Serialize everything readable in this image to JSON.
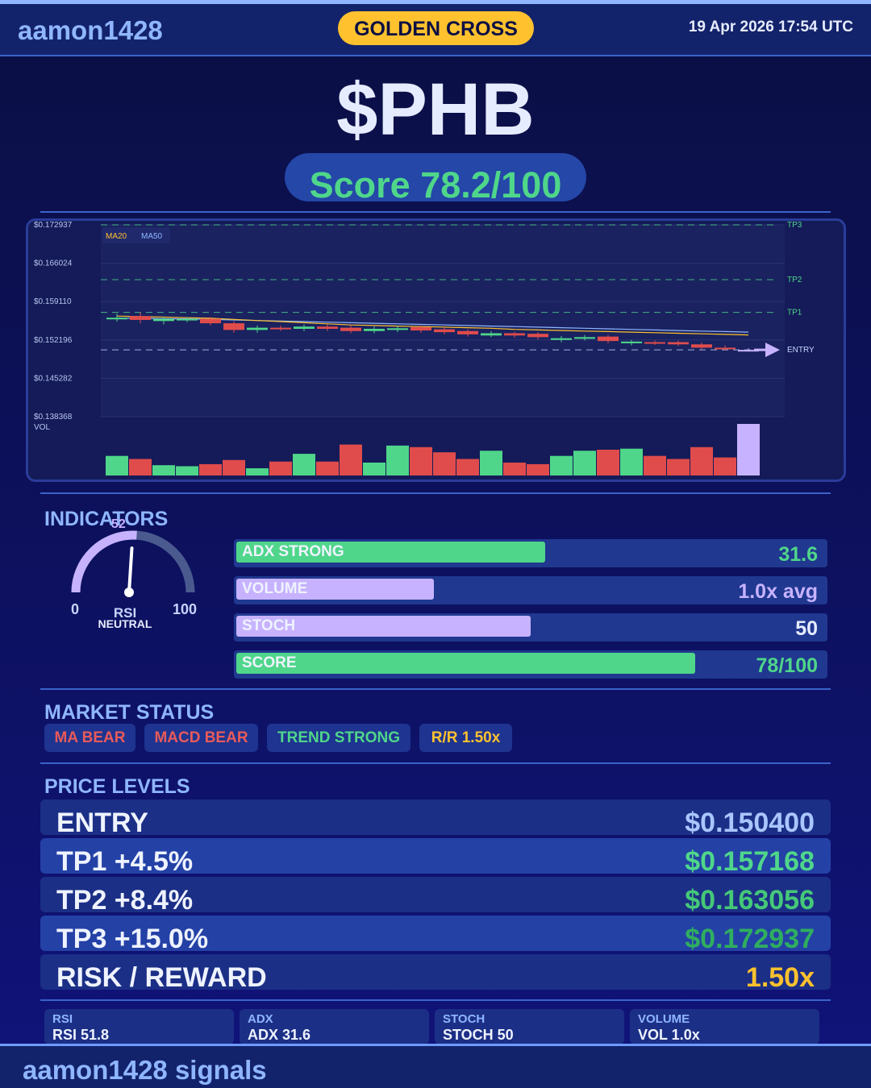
{
  "header": {
    "brand": "aamon1428",
    "signal": "GOLDEN CROSS",
    "datetime": "19 Apr 2026  17:54 UTC"
  },
  "ticker": "$PHB",
  "score": "Score 78.2/100",
  "colors": {
    "accent": "#8fb6ff",
    "green": "#4fd68a",
    "red": "#e04c4c",
    "purple": "#c7b2ff",
    "gold": "#ffc22e"
  },
  "chart_data": {
    "type": "candlestick",
    "y_axis_labels": [
      "$0.172937",
      "$0.166024",
      "$0.159110",
      "$0.152196",
      "$0.145282",
      "$0.138368"
    ],
    "ylim": [
      0.138368,
      0.172937
    ],
    "legend": [
      "MA20",
      "MA50"
    ],
    "levels": [
      {
        "name": "TP3",
        "value": 0.172937
      },
      {
        "name": "TP2",
        "value": 0.163056
      },
      {
        "name": "TP1",
        "value": 0.157168
      },
      {
        "name": "ENTRY",
        "value": 0.1504
      }
    ],
    "vol_label": "VOL",
    "candles": [
      {
        "o": 0.1562,
        "c": 0.1562,
        "h": 0.1569,
        "l": 0.1555
      },
      {
        "o": 0.1565,
        "c": 0.1558,
        "h": 0.1572,
        "l": 0.1552
      },
      {
        "o": 0.1556,
        "c": 0.156,
        "h": 0.1564,
        "l": 0.155
      },
      {
        "o": 0.1558,
        "c": 0.156,
        "h": 0.1563,
        "l": 0.1554
      },
      {
        "o": 0.156,
        "c": 0.1552,
        "h": 0.1563,
        "l": 0.1548
      },
      {
        "o": 0.1552,
        "c": 0.154,
        "h": 0.1556,
        "l": 0.1535
      },
      {
        "o": 0.154,
        "c": 0.1544,
        "h": 0.1548,
        "l": 0.1535
      },
      {
        "o": 0.1544,
        "c": 0.1542,
        "h": 0.1548,
        "l": 0.1538
      },
      {
        "o": 0.1542,
        "c": 0.1546,
        "h": 0.155,
        "l": 0.1538
      },
      {
        "o": 0.1546,
        "c": 0.1542,
        "h": 0.155,
        "l": 0.1538
      },
      {
        "o": 0.1544,
        "c": 0.1538,
        "h": 0.1548,
        "l": 0.1534
      },
      {
        "o": 0.1538,
        "c": 0.1542,
        "h": 0.1546,
        "l": 0.1534
      },
      {
        "o": 0.154,
        "c": 0.1543,
        "h": 0.1547,
        "l": 0.1536
      },
      {
        "o": 0.1545,
        "c": 0.1539,
        "h": 0.1548,
        "l": 0.1535
      },
      {
        "o": 0.1541,
        "c": 0.1536,
        "h": 0.1545,
        "l": 0.1532
      },
      {
        "o": 0.1538,
        "c": 0.1532,
        "h": 0.1541,
        "l": 0.1528
      },
      {
        "o": 0.153,
        "c": 0.1534,
        "h": 0.1538,
        "l": 0.1527
      },
      {
        "o": 0.1534,
        "c": 0.153,
        "h": 0.1537,
        "l": 0.1526
      },
      {
        "o": 0.1533,
        "c": 0.1527,
        "h": 0.1536,
        "l": 0.1523
      },
      {
        "o": 0.1522,
        "c": 0.1525,
        "h": 0.1529,
        "l": 0.1518
      },
      {
        "o": 0.1524,
        "c": 0.1527,
        "h": 0.1531,
        "l": 0.1521
      },
      {
        "o": 0.1528,
        "c": 0.152,
        "h": 0.1531,
        "l": 0.1516
      },
      {
        "o": 0.1516,
        "c": 0.1519,
        "h": 0.1522,
        "l": 0.1512
      },
      {
        "o": 0.1518,
        "c": 0.1516,
        "h": 0.1521,
        "l": 0.1513
      },
      {
        "o": 0.1518,
        "c": 0.1514,
        "h": 0.1521,
        "l": 0.1511
      },
      {
        "o": 0.1514,
        "c": 0.1508,
        "h": 0.1517,
        "l": 0.1505
      },
      {
        "o": 0.1508,
        "c": 0.1506,
        "h": 0.1512,
        "l": 0.1503
      },
      {
        "o": 0.1504,
        "c": 0.1504,
        "h": 0.1507,
        "l": 0.1501
      }
    ],
    "volumes": [
      0.38,
      0.32,
      0.2,
      0.18,
      0.22,
      0.3,
      0.14,
      0.27,
      0.42,
      0.27,
      0.6,
      0.25,
      0.58,
      0.55,
      0.45,
      0.32,
      0.48,
      0.25,
      0.22,
      0.38,
      0.48,
      0.5,
      0.52,
      0.38,
      0.32,
      0.55,
      0.35,
      1.0
    ],
    "ma20": [
      0.1565,
      0.1564,
      0.1563,
      0.1562,
      0.1561,
      0.1559,
      0.1557,
      0.1555,
      0.1553,
      0.1551,
      0.1549,
      0.1548,
      0.1547,
      0.1546,
      0.1545,
      0.1544,
      0.1543,
      0.1541,
      0.154,
      0.1539,
      0.1538,
      0.1537,
      0.1536,
      0.1535,
      0.1534,
      0.1533,
      0.1532,
      0.1531
    ],
    "ma50": [
      0.1561,
      0.1561,
      0.156,
      0.156,
      0.1559,
      0.1558,
      0.1557,
      0.1556,
      0.1555,
      0.1554,
      0.1553,
      0.1552,
      0.1551,
      0.155,
      0.1549,
      0.1548,
      0.1547,
      0.1546,
      0.1545,
      0.1544,
      0.1543,
      0.1542,
      0.1541,
      0.154,
      0.1539,
      0.1538,
      0.1537,
      0.1536
    ]
  },
  "indicators": {
    "title": "INDICATORS",
    "rsi": {
      "value": 52,
      "value_label": "52",
      "min": "0",
      "max": "100",
      "label": "RSI",
      "state": "NEUTRAL"
    },
    "bars": [
      {
        "label": "ADX  STRONG",
        "value": "31.6",
        "fill": 0.525,
        "color": "#4fd68a",
        "value_color": "#4fd68a"
      },
      {
        "label": "VOLUME",
        "value": "1.0x avg",
        "fill": 0.335,
        "color": "#c7b2ff",
        "value_color": "#c7b2ff"
      },
      {
        "label": "STOCH",
        "value": "50",
        "fill": 0.5,
        "color": "#c7b2ff",
        "value_color": "#e6ecff"
      },
      {
        "label": "SCORE",
        "value": "78/100",
        "fill": 0.78,
        "color": "#4fd68a",
        "value_color": "#4fd68a"
      }
    ]
  },
  "market_status": {
    "title": "MARKET STATUS",
    "tags": [
      {
        "label": "MA BEAR",
        "color": "#e85a5a"
      },
      {
        "label": "MACD BEAR",
        "color": "#e85a5a"
      },
      {
        "label": "TREND STRONG",
        "color": "#4fd68a"
      },
      {
        "label": "R/R  1.50x",
        "color": "#ffc22e"
      }
    ]
  },
  "price_levels": {
    "title": "PRICE LEVELS",
    "rows": [
      {
        "name": "ENTRY",
        "price": "$0.150400",
        "color": "#a9c6ff"
      },
      {
        "name": "TP1  +4.5%",
        "price": "$0.157168",
        "color": "#4fd68a"
      },
      {
        "name": "TP2  +8.4%",
        "price": "$0.163056",
        "color": "#45c878"
      },
      {
        "name": "TP3  +15.0%",
        "price": "$0.172937",
        "color": "#2fae5f"
      },
      {
        "name": "RISK / REWARD",
        "price": "1.50x",
        "color": "#ffc22e"
      }
    ]
  },
  "stats": [
    {
      "label": "RSI",
      "value": "RSI 51.8"
    },
    {
      "label": "ADX",
      "value": "ADX 31.6"
    },
    {
      "label": "STOCH",
      "value": "STOCH 50"
    },
    {
      "label": "VOLUME",
      "value": "VOL 1.0x"
    }
  ],
  "footer": {
    "brand": "aamon1428 signals"
  }
}
